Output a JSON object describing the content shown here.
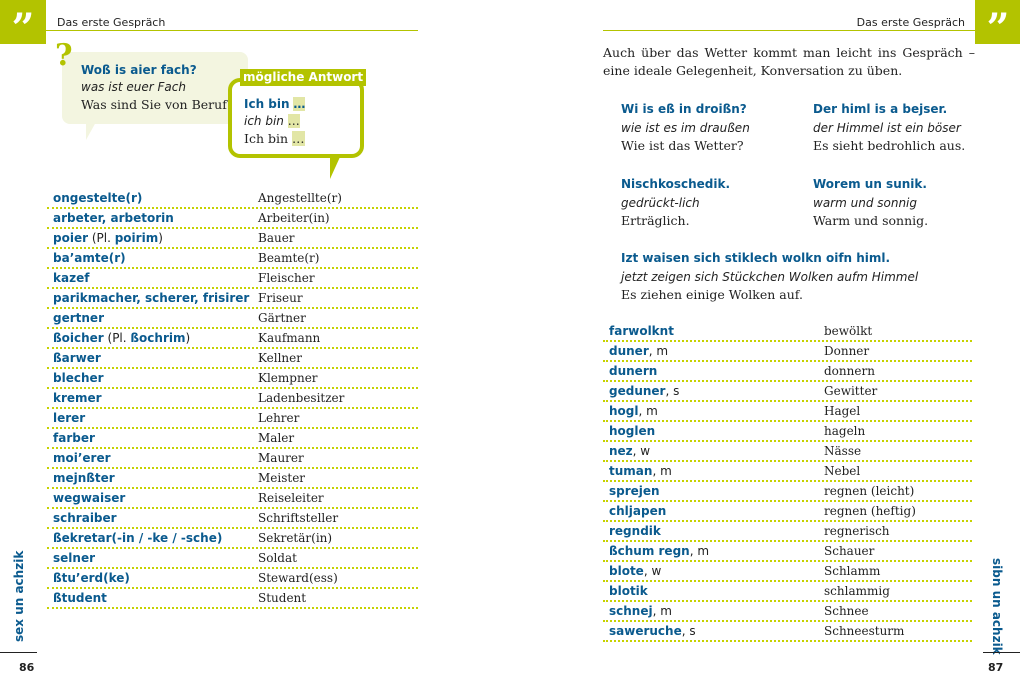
{
  "header": {
    "left": "Das erste Gespräch",
    "right": "Das erste Gespräch",
    "quote_glyph": "”"
  },
  "left": {
    "question": {
      "icon": "question-mark-icon",
      "mark": "?",
      "dialect": "Woß is aier fach?",
      "literal": "was ist euer Fach",
      "german": "Was sind Sie von Beruf?"
    },
    "answer": {
      "label": "mögliche Antwort",
      "dialect": "Ich bin",
      "literal": "ich bin",
      "german": "Ich bin",
      "ellipsis": "…"
    },
    "rows": [
      {
        "term": [
          [
            "b",
            "ongestelte(r)"
          ]
        ],
        "de": "Angestellte(r)"
      },
      {
        "term": [
          [
            "b",
            "arbeter, arbetorin"
          ]
        ],
        "de": "Arbeiter(in)"
      },
      {
        "term": [
          [
            "b",
            "poier"
          ],
          [
            "n",
            " (Pl. "
          ],
          [
            "b",
            "poirim"
          ],
          [
            "n",
            ")"
          ]
        ],
        "de": "Bauer"
      },
      {
        "term": [
          [
            "b",
            "ba’amte(r)"
          ]
        ],
        "de": "Beamte(r)"
      },
      {
        "term": [
          [
            "b",
            "kazef"
          ]
        ],
        "de": "Fleischer"
      },
      {
        "term": [
          [
            "b",
            "parikmacher, scherer, frisirer"
          ]
        ],
        "de": "Friseur"
      },
      {
        "term": [
          [
            "b",
            "gertner"
          ]
        ],
        "de": "Gärtner"
      },
      {
        "term": [
          [
            "b",
            "ßoicher"
          ],
          [
            "n",
            " (Pl. "
          ],
          [
            "b",
            "ßochrim"
          ],
          [
            "n",
            ")"
          ]
        ],
        "de": "Kaufmann"
      },
      {
        "term": [
          [
            "b",
            "ßarwer"
          ]
        ],
        "de": "Kellner"
      },
      {
        "term": [
          [
            "b",
            "blecher"
          ]
        ],
        "de": "Klempner"
      },
      {
        "term": [
          [
            "b",
            "kremer"
          ]
        ],
        "de": "Ladenbesitzer"
      },
      {
        "term": [
          [
            "b",
            "lerer"
          ]
        ],
        "de": "Lehrer"
      },
      {
        "term": [
          [
            "b",
            "farber"
          ]
        ],
        "de": "Maler"
      },
      {
        "term": [
          [
            "b",
            "moi’erer"
          ]
        ],
        "de": "Maurer"
      },
      {
        "term": [
          [
            "b",
            "mejnßter"
          ]
        ],
        "de": "Meister"
      },
      {
        "term": [
          [
            "b",
            "wegwaiser"
          ]
        ],
        "de": "Reiseleiter"
      },
      {
        "term": [
          [
            "b",
            "schraiber"
          ]
        ],
        "de": "Schriftsteller"
      },
      {
        "term": [
          [
            "b",
            "ßekretar(-in / -ke / -sche)"
          ]
        ],
        "de": "Sekretär(in)"
      },
      {
        "term": [
          [
            "b",
            "selner"
          ]
        ],
        "de": "Soldat"
      },
      {
        "term": [
          [
            "b",
            "ßtu’erd(ke)"
          ]
        ],
        "de": "Steward(ess)"
      },
      {
        "term": [
          [
            "b",
            "ßtudent"
          ]
        ],
        "de": "Student"
      }
    ],
    "side_label": "sex un achzik",
    "page": "86"
  },
  "right": {
    "intro": "Auch über das Wetter kommt man leicht ins Gespräch – eine ideale Gelegenheit, Konversation zu üben.",
    "phrases": [
      {
        "dialect": "Wi is eß in droißn?",
        "literal": "wie ist es im draußen",
        "german": "Wie ist das Wetter?"
      },
      {
        "dialect": "Der himl is a bejser.",
        "literal": "der Himmel ist ein böser",
        "german": "Es sieht bedrohlich aus."
      },
      {
        "dialect": "Nischkoschedik.",
        "literal": "gedrückt-lich",
        "german": "Erträglich."
      },
      {
        "dialect": "Worem un sunik.",
        "literal": "warm und sonnig",
        "german": "Warm und sonnig."
      },
      {
        "dialect": "Izt waisen sich stiklech wolkn oifn himl.",
        "literal": "jetzt zeigen sich Stückchen Wolken aufm Himmel",
        "german": "Es ziehen einige Wolken auf."
      }
    ],
    "rows": [
      {
        "term": [
          [
            "b",
            "farwolknt"
          ]
        ],
        "de": "bewölkt"
      },
      {
        "term": [
          [
            "b",
            "duner"
          ],
          [
            "n",
            ", m"
          ]
        ],
        "de": "Donner"
      },
      {
        "term": [
          [
            "b",
            "dunern"
          ]
        ],
        "de": "donnern"
      },
      {
        "term": [
          [
            "b",
            "geduner"
          ],
          [
            "n",
            ", s"
          ]
        ],
        "de": "Gewitter"
      },
      {
        "term": [
          [
            "b",
            "hogl"
          ],
          [
            "n",
            ", m"
          ]
        ],
        "de": "Hagel"
      },
      {
        "term": [
          [
            "b",
            "hoglen"
          ]
        ],
        "de": "hageln"
      },
      {
        "term": [
          [
            "b",
            "nez"
          ],
          [
            "n",
            ", w"
          ]
        ],
        "de": "Nässe"
      },
      {
        "term": [
          [
            "b",
            "tuman"
          ],
          [
            "n",
            ", m"
          ]
        ],
        "de": "Nebel"
      },
      {
        "term": [
          [
            "b",
            "sprejen"
          ]
        ],
        "de": "regnen (leicht)"
      },
      {
        "term": [
          [
            "b",
            "chljapen"
          ]
        ],
        "de": "regnen (heftig)"
      },
      {
        "term": [
          [
            "b",
            "regndik"
          ]
        ],
        "de": "regnerisch"
      },
      {
        "term": [
          [
            "b",
            "ßchum regn"
          ],
          [
            "n",
            ", m"
          ]
        ],
        "de": "Schauer"
      },
      {
        "term": [
          [
            "b",
            "blote"
          ],
          [
            "n",
            ", w"
          ]
        ],
        "de": "Schlamm"
      },
      {
        "term": [
          [
            "b",
            "blotik"
          ]
        ],
        "de": "schlammig"
      },
      {
        "term": [
          [
            "b",
            "schnej"
          ],
          [
            "n",
            ", m"
          ]
        ],
        "de": "Schnee"
      },
      {
        "term": [
          [
            "b",
            "saweruche"
          ],
          [
            "n",
            ", s"
          ]
        ],
        "de": "Schneesturm"
      }
    ],
    "side_label": "sibn un achzik",
    "page": "87"
  },
  "colors": {
    "accent": "#b3c300",
    "blue": "#0a5a8e",
    "bubble": "#f3f5e0"
  }
}
